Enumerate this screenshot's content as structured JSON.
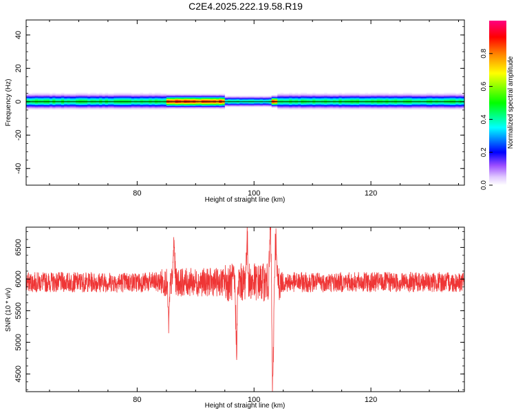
{
  "title": "C2E4.2025.222.19.58.R19",
  "chart_data": [
    {
      "type": "heatmap",
      "xlabel": "Height of straight line (km)",
      "ylabel": "Frequency (Hz)",
      "xlim": [
        61,
        136
      ],
      "ylim": [
        -50,
        49
      ],
      "xticks": [
        80,
        100,
        120
      ],
      "yticks": [
        40,
        20,
        0,
        -20,
        -40
      ],
      "colorbar": {
        "label": "Normalized spectral amplitude",
        "range": [
          0,
          1
        ],
        "ticks": [
          "0.0",
          "0.2",
          "0.4",
          "0.6",
          "0.8"
        ],
        "colormap": [
          "#ffffff",
          "#e0c8ff",
          "#9b4dff",
          "#0000ff",
          "#00ffff",
          "#00ff00",
          "#ffff00",
          "#ff8000",
          "#ff0000",
          "#ff0080"
        ]
      },
      "band": {
        "center_freq_hz": 0,
        "segments": [
          {
            "x_range": [
              61,
              85
            ],
            "halfwidth_hz": 3.5,
            "peak": 0.5
          },
          {
            "x_range": [
              85,
              95
            ],
            "halfwidth_hz": 3,
            "peak": 0.95
          },
          {
            "x_range": [
              95,
              103
            ],
            "halfwidth_hz": 2.5,
            "peak": 0.45
          },
          {
            "x_range": [
              103,
              104
            ],
            "halfwidth_hz": 2.5,
            "peak": 0.95
          },
          {
            "x_range": [
              104,
              136
            ],
            "halfwidth_hz": 3.5,
            "peak": 0.5
          }
        ]
      }
    },
    {
      "type": "line",
      "xlabel": "Height of straight line (km)",
      "ylabel": "SNR (10 * v/v)",
      "xlim": [
        61,
        136
      ],
      "ylim": [
        4220,
        6820
      ],
      "xticks": [
        80,
        100,
        120
      ],
      "yticks": [
        6500,
        6000,
        5500,
        5000,
        4500
      ],
      "series": [
        {
          "color": "#ef3535",
          "baseline": 5950,
          "noise_amplitude": 160,
          "sample_step_km": 0.03,
          "extremes": [
            {
              "x": 85.4,
              "y": 5300
            },
            {
              "x": 86.3,
              "y": 6550
            },
            {
              "x": 97.0,
              "y": 4980
            },
            {
              "x": 98.8,
              "y": 6620
            },
            {
              "x": 102.8,
              "y": 6800
            },
            {
              "x": 103.2,
              "y": 4230
            },
            {
              "x": 103.7,
              "y": 6600
            }
          ]
        }
      ]
    }
  ]
}
